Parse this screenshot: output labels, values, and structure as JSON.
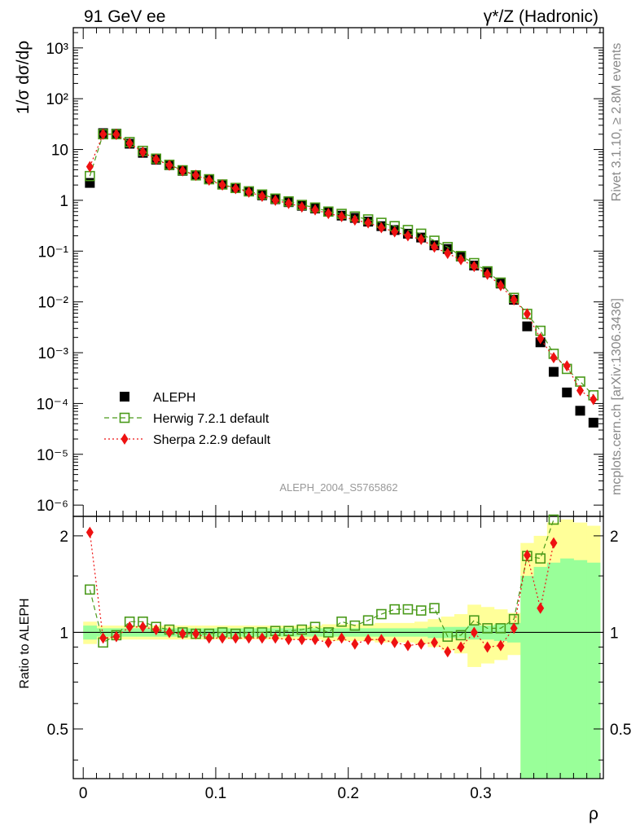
{
  "header": {
    "left_title": "91 GeV ee",
    "right_title": "γ*/Z (Hadronic)"
  },
  "side": {
    "rivet": "Rivet 3.1.10, ≥ 2.8M events",
    "source": "mcplots.cern.ch [arXiv:1306.3436]"
  },
  "analysis_id": "ALEPH_2004_S5765862",
  "chart_data": [
    {
      "type": "scatter",
      "ylabel": "1/σ dσ/dρ",
      "yscale": "log",
      "ylim": [
        6e-07,
        2500
      ],
      "xlim": [
        -0.0075,
        0.3925
      ],
      "y_ticks": [
        "10⁻⁶",
        "10⁻⁵",
        "10⁻⁴",
        "10⁻³",
        "10⁻²",
        "10⁻¹",
        "1",
        "10",
        "10²",
        "10³"
      ],
      "legend": {
        "placement": "bottom-left",
        "entries": [
          "ALEPH",
          "Herwig 7.2.1 default",
          "Sherpa 2.2.9 default"
        ]
      },
      "x": [
        0.005,
        0.015,
        0.025,
        0.035,
        0.045,
        0.055,
        0.065,
        0.075,
        0.085,
        0.095,
        0.105,
        0.115,
        0.125,
        0.135,
        0.145,
        0.155,
        0.165,
        0.175,
        0.185,
        0.195,
        0.205,
        0.215,
        0.225,
        0.235,
        0.245,
        0.255,
        0.265,
        0.275,
        0.285,
        0.295,
        0.305,
        0.315,
        0.325,
        0.335,
        0.345,
        0.355,
        0.365,
        0.375,
        0.385
      ],
      "series": [
        {
          "name": "ALEPH",
          "color": "#000000",
          "marker": "square-filled",
          "values": [
            2.2,
            21,
            20.5,
            13,
            8.6,
            6.3,
            4.9,
            3.8,
            3.1,
            2.6,
            2.05,
            1.75,
            1.5,
            1.25,
            1.05,
            0.92,
            0.78,
            0.69,
            0.6,
            0.5,
            0.45,
            0.38,
            0.31,
            0.26,
            0.22,
            0.185,
            0.13,
            0.11,
            0.078,
            0.052,
            0.038,
            0.023,
            0.011,
            0.0033,
            0.0016,
            0.00042,
            0.000165,
            7.2e-05,
            4.2e-05
          ]
        },
        {
          "name": "Herwig 7.2.1 default",
          "color": "#4a9a1a",
          "marker": "square-open",
          "line": "dashed",
          "values": [
            3.0,
            20,
            20,
            14,
            9.4,
            6.6,
            5.0,
            3.9,
            3.1,
            2.6,
            2.05,
            1.75,
            1.5,
            1.3,
            1.08,
            0.95,
            0.81,
            0.72,
            0.6,
            0.54,
            0.48,
            0.42,
            0.36,
            0.31,
            0.26,
            0.22,
            0.16,
            0.12,
            0.08,
            0.058,
            0.04,
            0.024,
            0.012,
            0.0058,
            0.0027,
            0.00095,
            0.00048,
            0.00027,
            0.000145
          ]
        },
        {
          "name": "Sherpa 2.2.9 default",
          "color": "#ee1111",
          "marker": "diamond-filled",
          "line": "dotted",
          "values": [
            4.6,
            20,
            19.8,
            13.2,
            8.9,
            6.4,
            4.9,
            3.8,
            3.1,
            2.5,
            2.0,
            1.7,
            1.45,
            1.2,
            1.0,
            0.87,
            0.74,
            0.65,
            0.55,
            0.48,
            0.41,
            0.36,
            0.29,
            0.24,
            0.2,
            0.17,
            0.12,
            0.09,
            0.068,
            0.05,
            0.035,
            0.021,
            0.011,
            0.0058,
            0.0019,
            0.0008,
            0.00055,
            0.00018,
            0.00012
          ]
        }
      ]
    },
    {
      "type": "scatter",
      "ylabel": "Ratio to ALEPH",
      "ylim": [
        0.35,
        2.3
      ],
      "xlim": [
        -0.0075,
        0.3925
      ],
      "xlabel": "ρ",
      "x_ticks": [
        "0",
        "0.1",
        "0.2",
        "0.3"
      ],
      "y_ticks": [
        "0.5",
        "1",
        "2"
      ],
      "x": [
        0.005,
        0.015,
        0.025,
        0.035,
        0.045,
        0.055,
        0.065,
        0.075,
        0.085,
        0.095,
        0.105,
        0.115,
        0.125,
        0.135,
        0.145,
        0.155,
        0.165,
        0.175,
        0.185,
        0.195,
        0.205,
        0.215,
        0.225,
        0.235,
        0.245,
        0.255,
        0.265,
        0.275,
        0.285,
        0.295,
        0.305,
        0.315,
        0.325,
        0.335,
        0.345,
        0.355
      ],
      "band_edges": [
        0,
        0.01,
        0.02,
        0.03,
        0.04,
        0.05,
        0.06,
        0.07,
        0.08,
        0.09,
        0.1,
        0.11,
        0.12,
        0.13,
        0.14,
        0.15,
        0.16,
        0.17,
        0.18,
        0.19,
        0.2,
        0.21,
        0.22,
        0.23,
        0.24,
        0.25,
        0.26,
        0.27,
        0.28,
        0.29,
        0.3,
        0.31,
        0.32,
        0.33,
        0.34,
        0.35,
        0.36,
        0.37,
        0.38,
        0.39
      ],
      "band_green": [
        [
          0.95,
          1.05
        ],
        [
          0.97,
          1.03
        ],
        [
          0.97,
          1.03
        ],
        [
          0.97,
          1.03
        ],
        [
          0.97,
          1.03
        ],
        [
          0.97,
          1.03
        ],
        [
          0.97,
          1.03
        ],
        [
          0.97,
          1.03
        ],
        [
          0.97,
          1.03
        ],
        [
          0.97,
          1.03
        ],
        [
          0.97,
          1.03
        ],
        [
          0.97,
          1.03
        ],
        [
          0.97,
          1.03
        ],
        [
          0.97,
          1.03
        ],
        [
          0.97,
          1.03
        ],
        [
          0.97,
          1.03
        ],
        [
          0.97,
          1.03
        ],
        [
          0.97,
          1.03
        ],
        [
          0.97,
          1.03
        ],
        [
          0.97,
          1.03
        ],
        [
          0.97,
          1.03
        ],
        [
          0.97,
          1.03
        ],
        [
          0.97,
          1.03
        ],
        [
          0.97,
          1.03
        ],
        [
          0.97,
          1.03
        ],
        [
          0.97,
          1.03
        ],
        [
          0.96,
          1.04
        ],
        [
          0.96,
          1.04
        ],
        [
          0.96,
          1.04
        ],
        [
          0.95,
          1.05
        ],
        [
          0.95,
          1.05
        ],
        [
          0.94,
          1.06
        ],
        [
          0.93,
          1.07
        ],
        [
          0.3,
          1.5
        ],
        [
          0.3,
          1.6
        ],
        [
          0.3,
          1.65
        ],
        [
          0.3,
          1.7
        ],
        [
          0.3,
          1.68
        ],
        [
          0.3,
          1.65
        ]
      ],
      "band_yellow": [
        [
          0.92,
          1.08
        ],
        [
          0.95,
          1.05
        ],
        [
          0.95,
          1.05
        ],
        [
          0.95,
          1.05
        ],
        [
          0.95,
          1.05
        ],
        [
          0.95,
          1.05
        ],
        [
          0.95,
          1.05
        ],
        [
          0.95,
          1.05
        ],
        [
          0.95,
          1.05
        ],
        [
          0.95,
          1.05
        ],
        [
          0.95,
          1.05
        ],
        [
          0.95,
          1.05
        ],
        [
          0.95,
          1.05
        ],
        [
          0.95,
          1.05
        ],
        [
          0.95,
          1.05
        ],
        [
          0.95,
          1.05
        ],
        [
          0.95,
          1.05
        ],
        [
          0.95,
          1.05
        ],
        [
          0.94,
          1.06
        ],
        [
          0.94,
          1.06
        ],
        [
          0.94,
          1.06
        ],
        [
          0.94,
          1.06
        ],
        [
          0.93,
          1.07
        ],
        [
          0.93,
          1.07
        ],
        [
          0.93,
          1.07
        ],
        [
          0.92,
          1.08
        ],
        [
          0.9,
          1.1
        ],
        [
          0.88,
          1.12
        ],
        [
          0.86,
          1.14
        ],
        [
          0.78,
          1.22
        ],
        [
          0.8,
          1.2
        ],
        [
          0.82,
          1.18
        ],
        [
          0.85,
          1.15
        ],
        [
          0.33,
          1.9
        ],
        [
          0.55,
          2.0
        ],
        [
          0.5,
          2.2
        ],
        [
          0.3,
          2.25
        ],
        [
          0.3,
          2.2
        ],
        [
          0.3,
          2.15
        ]
      ],
      "series": [
        {
          "name": "Herwig 7.2.1 default",
          "color": "#4a9a1a",
          "marker": "square-open",
          "line": "dashed",
          "values": [
            1.36,
            0.93,
            0.98,
            1.08,
            1.08,
            1.04,
            1.02,
            1.0,
            0.99,
            0.99,
            1.0,
            0.99,
            1.0,
            1.0,
            1.01,
            1.01,
            1.02,
            1.04,
            1.0,
            1.08,
            1.05,
            1.09,
            1.14,
            1.18,
            1.18,
            1.17,
            1.19,
            0.97,
            0.98,
            1.09,
            1.03,
            1.03,
            1.1,
            1.73,
            1.7,
            2.25
          ]
        },
        {
          "name": "Sherpa 2.2.9 default",
          "color": "#ee1111",
          "marker": "diamond-filled",
          "line": "dotted",
          "values": [
            2.05,
            0.96,
            0.97,
            1.04,
            1.04,
            1.02,
            1.0,
            0.99,
            0.99,
            0.96,
            0.96,
            0.96,
            0.96,
            0.96,
            0.96,
            0.95,
            0.95,
            0.95,
            0.93,
            0.96,
            0.92,
            0.95,
            0.95,
            0.93,
            0.91,
            0.92,
            0.93,
            0.87,
            0.9,
            1.0,
            0.9,
            0.91,
            1.03,
            1.74,
            1.19,
            1.9
          ]
        }
      ]
    }
  ]
}
